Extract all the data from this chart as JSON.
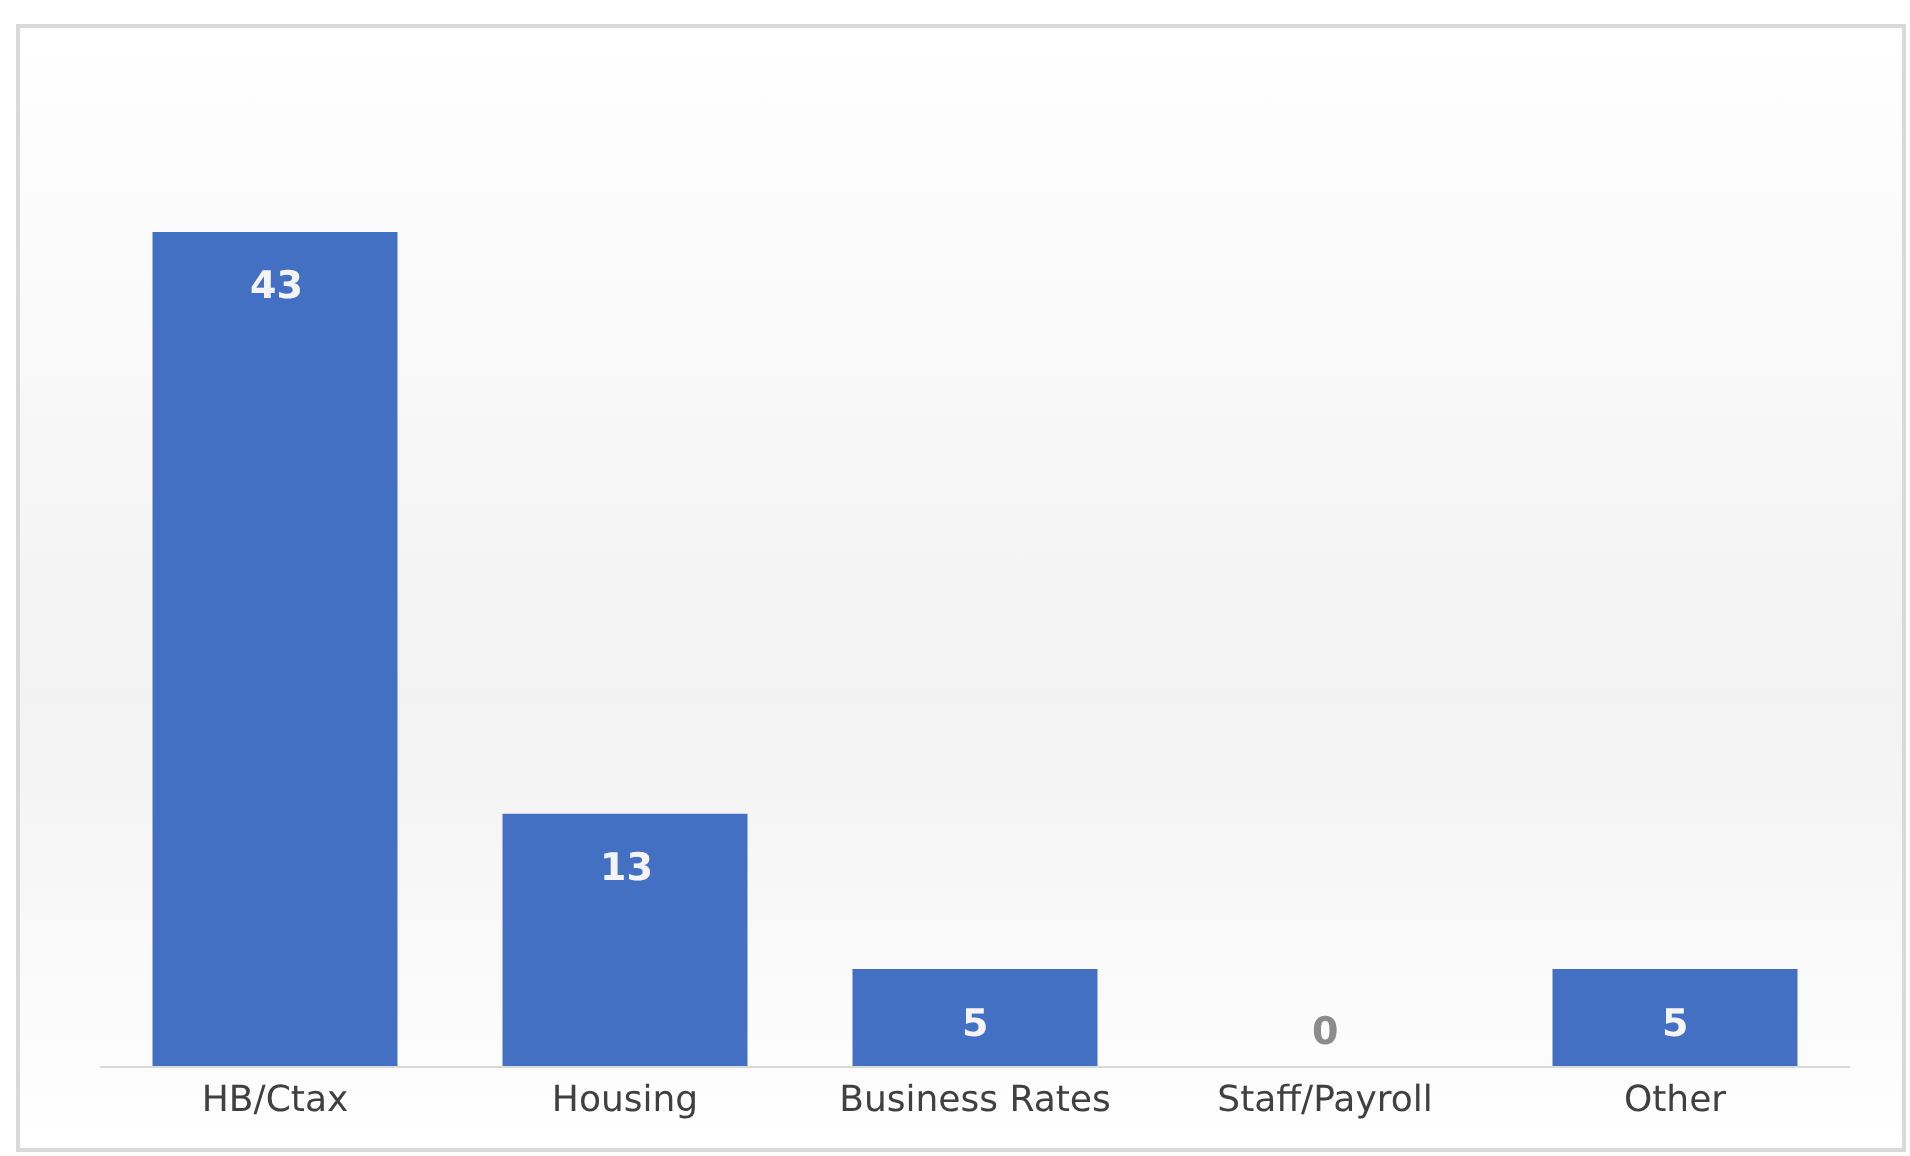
{
  "chart_data": {
    "type": "bar",
    "categories": [
      "HB/Ctax",
      "Housing",
      "Business Rates",
      "Staff/Payroll",
      "Other"
    ],
    "values": [
      43,
      13,
      5,
      0,
      5
    ],
    "color": "#4470c3",
    "data_labels": true
  }
}
